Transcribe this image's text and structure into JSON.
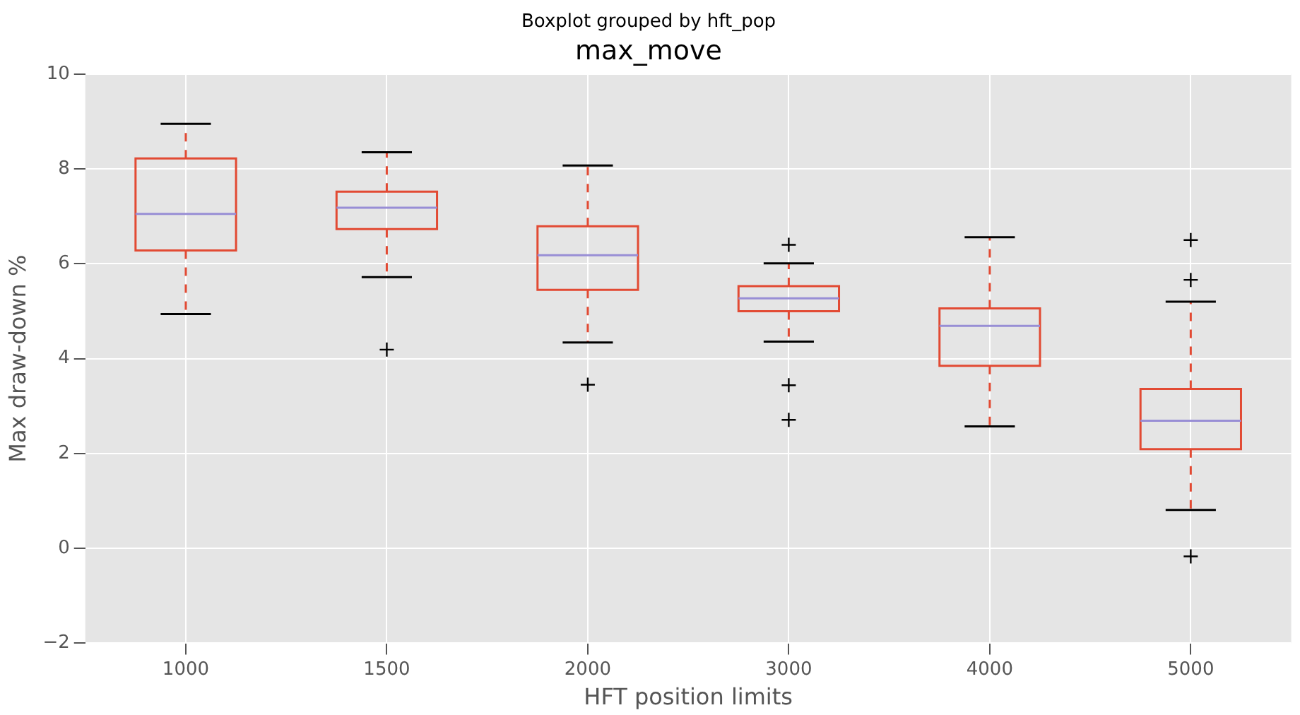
{
  "chart_data": {
    "type": "box",
    "title": "Boxplot grouped by hft_pop",
    "subtitle": "max_move",
    "xlabel": "HFT position limits",
    "ylabel": "Max draw-down %",
    "categories": [
      "1000",
      "1500",
      "2000",
      "3000",
      "4000",
      "5000"
    ],
    "color": "#e24a33",
    "boxes": [
      {
        "low": 4.94,
        "q1": 6.28,
        "median": 7.05,
        "q3": 8.22,
        "high": 8.95
      },
      {
        "low": 5.72,
        "q1": 6.73,
        "median": 7.18,
        "q3": 7.52,
        "high": 8.35,
        "outliers": [
          4.19
        ]
      },
      {
        "low": 4.34,
        "q1": 5.45,
        "median": 6.18,
        "q3": 6.79,
        "high": 8.07,
        "outliers": [
          3.45
        ]
      },
      {
        "low": 4.36,
        "q1": 5.0,
        "median": 5.27,
        "q3": 5.53,
        "high": 6.01,
        "outliers": [
          6.4,
          3.44,
          2.71
        ]
      },
      {
        "low": 2.57,
        "q1": 3.85,
        "median": 4.69,
        "q3": 5.06,
        "high": 6.56
      },
      {
        "low": 0.81,
        "q1": 2.09,
        "median": 2.69,
        "q3": 3.36,
        "high": 5.2,
        "outliers": [
          6.5,
          5.66,
          -0.17
        ]
      }
    ],
    "ylim": [
      -2,
      10
    ],
    "yticks": [
      {
        "value": -2,
        "label": "−2"
      },
      0,
      2,
      4,
      6,
      8,
      10
    ],
    "grid": true,
    "legend": false,
    "marker": "cross"
  }
}
